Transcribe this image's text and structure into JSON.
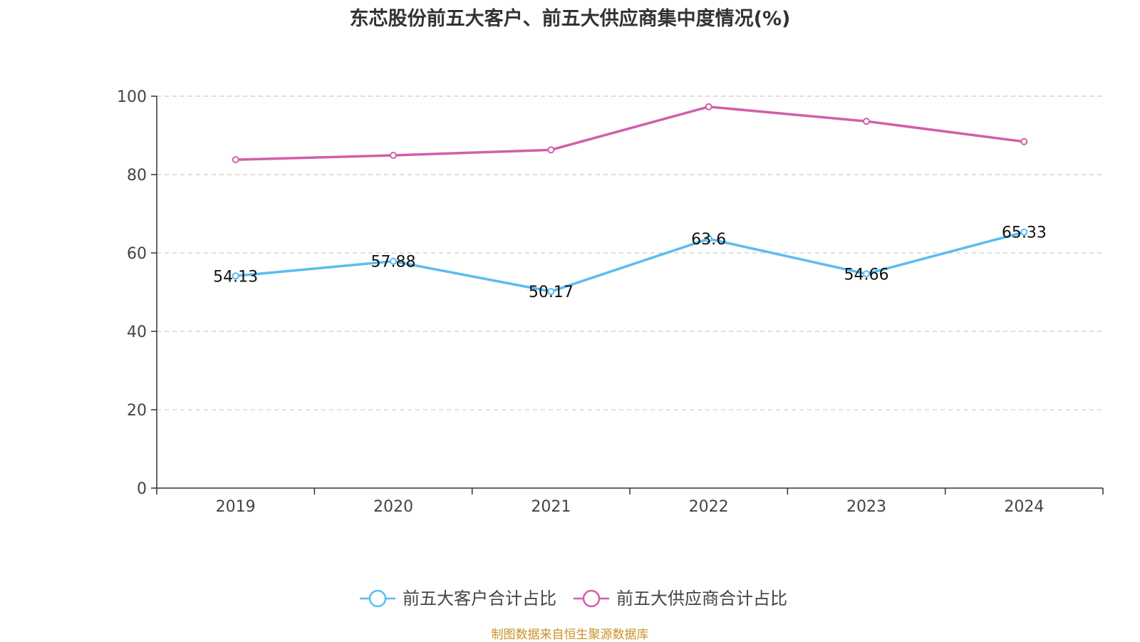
{
  "title": "东芯股份前五大客户、前五大供应商集中度情况(%)",
  "source": "制图数据来自恒生聚源数据库",
  "chart_data": {
    "type": "line",
    "title": "东芯股份前五大客户、前五大供应商集中度情况(%)",
    "categories": [
      "2019",
      "2020",
      "2021",
      "2022",
      "2023",
      "2024"
    ],
    "ylim": [
      0,
      100
    ],
    "yticks": [
      0,
      20,
      40,
      60,
      80,
      100
    ],
    "ytick_labels": [
      "0",
      "20",
      "40",
      "60",
      "80",
      "100"
    ],
    "grid": true,
    "legend_position": "bottom-center",
    "series": [
      {
        "name": "前五大客户合计占比",
        "color": "#5bbcf0",
        "values": [
          54.13,
          57.88,
          50.17,
          63.6,
          54.66,
          65.33
        ],
        "labels": [
          "54.13",
          "57.88",
          "50.17",
          "63.6",
          "54.66",
          "65.33"
        ],
        "show_labels": true
      },
      {
        "name": "前五大供应商合计占比",
        "color": "#d05fab",
        "values": [
          83.8,
          84.9,
          86.3,
          97.3,
          93.6,
          88.4
        ],
        "show_labels": false
      }
    ]
  }
}
